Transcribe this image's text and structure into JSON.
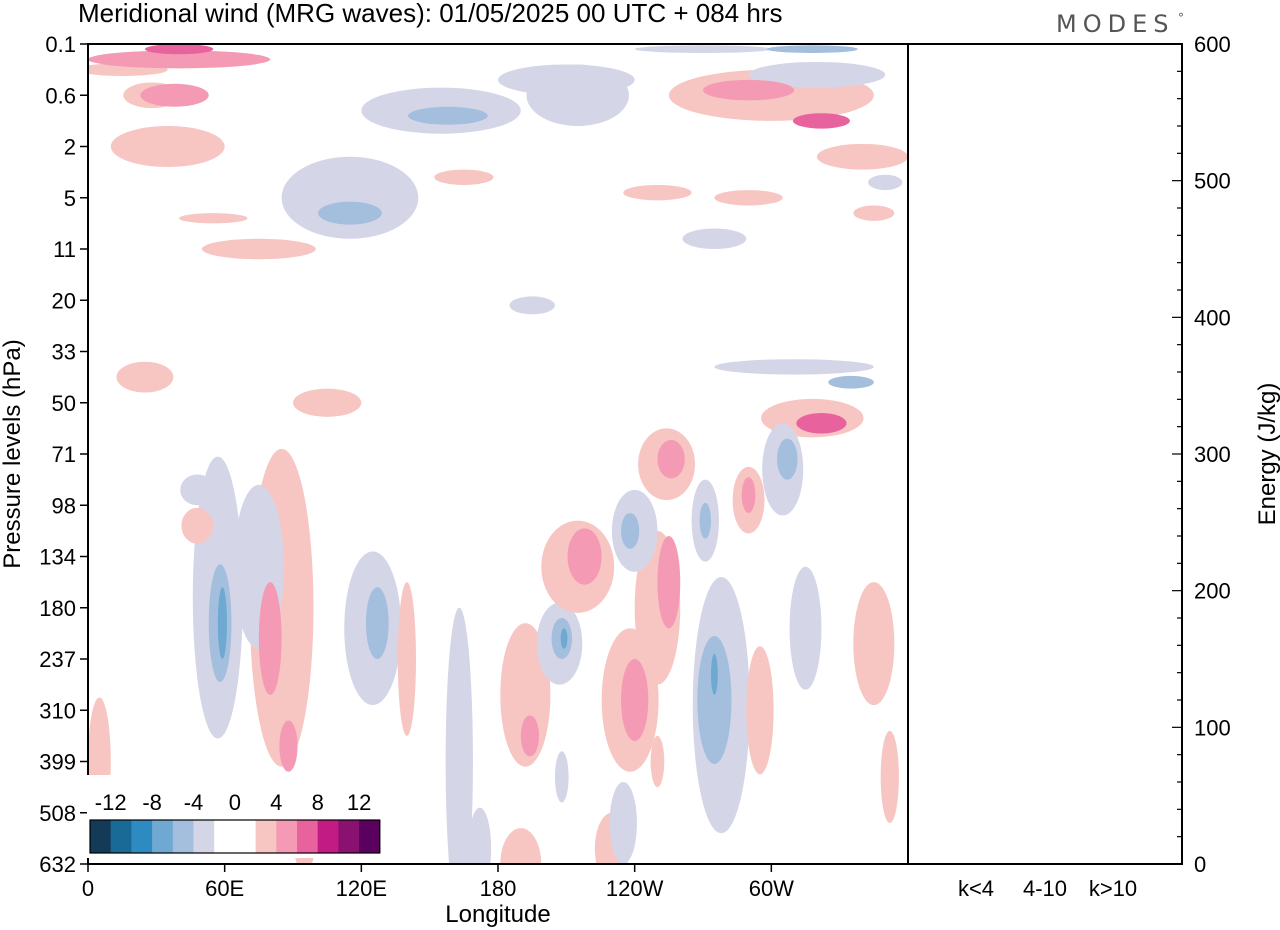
{
  "chart_data": {
    "type": "heatmap",
    "title": "Meridional wind (MRG waves):  01/05/2025  00 UTC  + 084 hrs",
    "brand": "MODES",
    "brand_mark": "°",
    "xlabel": "Longitude",
    "ylabel": "Pressure levels (hPa)",
    "ylabel_right": "Energy (J/kg)",
    "x_ticks": [
      {
        "lon": 0,
        "label": "0"
      },
      {
        "lon": 60,
        "label": "60E"
      },
      {
        "lon": 120,
        "label": "120E"
      },
      {
        "lon": 180,
        "label": "180"
      },
      {
        "lon": 240,
        "label": "120W"
      },
      {
        "lon": 300,
        "label": "60W"
      }
    ],
    "x_range": [
      0,
      360
    ],
    "pressure_levels": [
      "0.1",
      "0.6",
      "2",
      "5",
      "11",
      "20",
      "33",
      "50",
      "71",
      "98",
      "134",
      "180",
      "237",
      "310",
      "399",
      "508",
      "632"
    ],
    "energy_ticks": [
      0,
      100,
      200,
      300,
      400,
      500,
      600
    ],
    "energy_range": [
      0,
      600
    ],
    "energy_categories": [
      "k<4",
      "4-10",
      "k>10"
    ],
    "energy_values": [
      0,
      0,
      0
    ],
    "colorbar": {
      "tick_labels": [
        "-12",
        "-8",
        "-4",
        "0",
        "4",
        "8",
        "12"
      ],
      "colors": [
        "#133a56",
        "#1a6a98",
        "#2d8bc2",
        "#6fa9d2",
        "#a4bede",
        "#d4d6e8",
        "#ffffff",
        "#ffffff",
        "#f7c6c2",
        "#f49ab4",
        "#e8629e",
        "#c21b83",
        "#8a1170",
        "#5a005e"
      ]
    },
    "color_scale": {
      "neg1": "#d4d6e8",
      "neg2": "#a4bede",
      "neg3": "#6fa9d2",
      "neg4": "#2d8bc2",
      "pos1": "#f7c6c2",
      "pos2": "#f49ab4",
      "pos3": "#e8629e",
      "pos4": "#c21b83"
    },
    "blobs": [
      {
        "lon": 40,
        "lev": 0.3,
        "w": 80,
        "h": 0.35,
        "v": 2
      },
      {
        "lon": 40,
        "lev": 0.1,
        "w": 30,
        "h": 0.2,
        "v": 3
      },
      {
        "lon": 15,
        "lev": 0.5,
        "w": 40,
        "h": 0.25,
        "v": 1
      },
      {
        "lon": 38,
        "lev": 1.0,
        "w": 30,
        "h": 0.45,
        "v": 2
      },
      {
        "lon": 35,
        "lev": 2.0,
        "w": 50,
        "h": 0.8,
        "v": 1
      },
      {
        "lon": 28,
        "lev": 1.0,
        "w": 25,
        "h": 0.5,
        "v": 1
      },
      {
        "lon": 75,
        "lev": 4.0,
        "w": 50,
        "h": 0.4,
        "v": 1
      },
      {
        "lon": 55,
        "lev": 3.4,
        "w": 30,
        "h": 0.2,
        "v": 1
      },
      {
        "lon": 25,
        "lev": 6.5,
        "w": 25,
        "h": 0.6,
        "v": 1
      },
      {
        "lon": 100,
        "lev": 7.0,
        "w": 15,
        "h": 0.5,
        "v": 1
      },
      {
        "lon": 115,
        "lev": 3.0,
        "w": 60,
        "h": 1.6,
        "v": -1
      },
      {
        "lon": 115,
        "lev": 3.3,
        "w": 28,
        "h": 0.45,
        "v": -2
      },
      {
        "lon": 155,
        "lev": 1.3,
        "w": 70,
        "h": 0.9,
        "v": -1
      },
      {
        "lon": 158,
        "lev": 1.4,
        "w": 35,
        "h": 0.35,
        "v": -2
      },
      {
        "lon": 210,
        "lev": 0.7,
        "w": 60,
        "h": 0.6,
        "v": -1
      },
      {
        "lon": 215,
        "lev": 1.0,
        "w": 45,
        "h": 1.2,
        "v": -1
      },
      {
        "lon": 270,
        "lev": 0.1,
        "w": 60,
        "h": 0.15,
        "v": -1
      },
      {
        "lon": 318,
        "lev": 0.1,
        "w": 40,
        "h": 0.15,
        "v": -2
      },
      {
        "lon": 300,
        "lev": 1.0,
        "w": 90,
        "h": 1.0,
        "v": 1
      },
      {
        "lon": 290,
        "lev": 0.9,
        "w": 40,
        "h": 0.4,
        "v": 2
      },
      {
        "lon": 322,
        "lev": 1.5,
        "w": 25,
        "h": 0.3,
        "v": 3
      },
      {
        "lon": 340,
        "lev": 2.2,
        "w": 40,
        "h": 0.5,
        "v": 1
      },
      {
        "lon": 320,
        "lev": 0.6,
        "w": 60,
        "h": 0.5,
        "v": -1
      },
      {
        "lon": 250,
        "lev": 2.9,
        "w": 30,
        "h": 0.3,
        "v": 1
      },
      {
        "lon": 290,
        "lev": 3.0,
        "w": 30,
        "h": 0.3,
        "v": 1
      },
      {
        "lon": 165,
        "lev": 2.6,
        "w": 26,
        "h": 0.3,
        "v": 1
      },
      {
        "lon": 345,
        "lev": 3.3,
        "w": 18,
        "h": 0.3,
        "v": 1
      },
      {
        "lon": 275,
        "lev": 3.8,
        "w": 28,
        "h": 0.4,
        "v": -1
      },
      {
        "lon": 350,
        "lev": 2.7,
        "w": 15,
        "h": 0.3,
        "v": -1
      },
      {
        "lon": 195,
        "lev": 5.1,
        "w": 20,
        "h": 0.35,
        "v": -1
      },
      {
        "lon": 310,
        "lev": 6.3,
        "w": 70,
        "h": 0.3,
        "v": -1
      },
      {
        "lon": 335,
        "lev": 6.6,
        "w": 20,
        "h": 0.25,
        "v": -2
      },
      {
        "lon": 318,
        "lev": 7.3,
        "w": 45,
        "h": 0.75,
        "v": 1
      },
      {
        "lon": 322,
        "lev": 7.4,
        "w": 22,
        "h": 0.4,
        "v": 3
      },
      {
        "lon": 105,
        "lev": 7.0,
        "w": 30,
        "h": 0.55,
        "v": 1
      },
      {
        "lon": 48,
        "lev": 8.7,
        "w": 15,
        "h": 0.6,
        "v": -1
      },
      {
        "lon": 57,
        "lev": 10.8,
        "w": 22,
        "h": 5.5,
        "v": -1
      },
      {
        "lon": 58,
        "lev": 11.3,
        "w": 10,
        "h": 2.3,
        "v": -2
      },
      {
        "lon": 59,
        "lev": 11.3,
        "w": 4,
        "h": 1.4,
        "v": -3
      },
      {
        "lon": 48,
        "lev": 9.4,
        "w": 14,
        "h": 0.7,
        "v": 1
      },
      {
        "lon": 85,
        "lev": 11.0,
        "w": 28,
        "h": 6.2,
        "v": 1
      },
      {
        "lon": 80,
        "lev": 11.6,
        "w": 10,
        "h": 2.2,
        "v": 2
      },
      {
        "lon": 88,
        "lev": 13.7,
        "w": 8,
        "h": 1.0,
        "v": 2
      },
      {
        "lon": 75,
        "lev": 10.2,
        "w": 22,
        "h": 3.2,
        "v": -1
      },
      {
        "lon": 125,
        "lev": 11.4,
        "w": 25,
        "h": 3.0,
        "v": -1
      },
      {
        "lon": 127,
        "lev": 11.3,
        "w": 10,
        "h": 1.4,
        "v": -2
      },
      {
        "lon": 140,
        "lev": 12.0,
        "w": 8,
        "h": 3.0,
        "v": 1
      },
      {
        "lon": 163,
        "lev": 14.0,
        "w": 12,
        "h": 6.0,
        "v": -1
      },
      {
        "lon": 190,
        "lev": 16.0,
        "w": 18,
        "h": 1.4,
        "v": 1
      },
      {
        "lon": 192,
        "lev": 12.7,
        "w": 22,
        "h": 2.8,
        "v": 1
      },
      {
        "lon": 194,
        "lev": 13.5,
        "w": 8,
        "h": 0.8,
        "v": 2
      },
      {
        "lon": 207,
        "lev": 11.7,
        "w": 20,
        "h": 1.6,
        "v": -1
      },
      {
        "lon": 208,
        "lev": 11.6,
        "w": 9,
        "h": 0.8,
        "v": -2
      },
      {
        "lon": 209,
        "lev": 11.6,
        "w": 3,
        "h": 0.4,
        "v": -3
      },
      {
        "lon": 215,
        "lev": 10.2,
        "w": 32,
        "h": 1.8,
        "v": 1
      },
      {
        "lon": 218,
        "lev": 10.0,
        "w": 15,
        "h": 1.1,
        "v": 2
      },
      {
        "lon": 238,
        "lev": 12.8,
        "w": 25,
        "h": 2.8,
        "v": 1
      },
      {
        "lon": 240,
        "lev": 12.8,
        "w": 12,
        "h": 1.6,
        "v": 2
      },
      {
        "lon": 250,
        "lev": 11.0,
        "w": 20,
        "h": 3.0,
        "v": 1
      },
      {
        "lon": 255,
        "lev": 10.5,
        "w": 10,
        "h": 1.8,
        "v": 2
      },
      {
        "lon": 240,
        "lev": 9.5,
        "w": 20,
        "h": 1.6,
        "v": -1
      },
      {
        "lon": 238,
        "lev": 9.5,
        "w": 8,
        "h": 0.7,
        "v": -2
      },
      {
        "lon": 254,
        "lev": 8.2,
        "w": 25,
        "h": 1.4,
        "v": 1
      },
      {
        "lon": 256,
        "lev": 8.1,
        "w": 12,
        "h": 0.75,
        "v": 2
      },
      {
        "lon": 271,
        "lev": 9.3,
        "w": 12,
        "h": 1.6,
        "v": -1
      },
      {
        "lon": 271,
        "lev": 9.3,
        "w": 5,
        "h": 0.7,
        "v": -2
      },
      {
        "lon": 278,
        "lev": 12.9,
        "w": 25,
        "h": 5.0,
        "v": -1
      },
      {
        "lon": 275,
        "lev": 12.8,
        "w": 15,
        "h": 2.5,
        "v": -2
      },
      {
        "lon": 275,
        "lev": 12.3,
        "w": 3,
        "h": 0.8,
        "v": -3
      },
      {
        "lon": 290,
        "lev": 8.9,
        "w": 14,
        "h": 1.3,
        "v": 1
      },
      {
        "lon": 290,
        "lev": 8.8,
        "w": 6,
        "h": 0.7,
        "v": 2
      },
      {
        "lon": 305,
        "lev": 8.3,
        "w": 18,
        "h": 1.8,
        "v": -1
      },
      {
        "lon": 307,
        "lev": 8.1,
        "w": 9,
        "h": 0.8,
        "v": -2
      },
      {
        "lon": 295,
        "lev": 13.0,
        "w": 12,
        "h": 2.5,
        "v": 1
      },
      {
        "lon": 315,
        "lev": 11.4,
        "w": 14,
        "h": 2.4,
        "v": -1
      },
      {
        "lon": 345,
        "lev": 11.7,
        "w": 18,
        "h": 2.4,
        "v": 1
      },
      {
        "lon": 352,
        "lev": 14.3,
        "w": 8,
        "h": 1.8,
        "v": 1
      },
      {
        "lon": 5,
        "lev": 14.0,
        "w": 10,
        "h": 2.5,
        "v": 1
      },
      {
        "lon": 230,
        "lev": 15.7,
        "w": 15,
        "h": 1.4,
        "v": 1
      },
      {
        "lon": 235,
        "lev": 15.2,
        "w": 12,
        "h": 1.6,
        "v": -1
      },
      {
        "lon": 208,
        "lev": 14.3,
        "w": 6,
        "h": 1.0,
        "v": -1
      },
      {
        "lon": 172,
        "lev": 15.7,
        "w": 10,
        "h": 1.6,
        "v": -1
      },
      {
        "lon": 250,
        "lev": 14.0,
        "w": 6,
        "h": 1.0,
        "v": 1
      },
      {
        "lon": 95,
        "lev": 15.5,
        "w": 10,
        "h": 1.3,
        "v": 1
      }
    ]
  }
}
